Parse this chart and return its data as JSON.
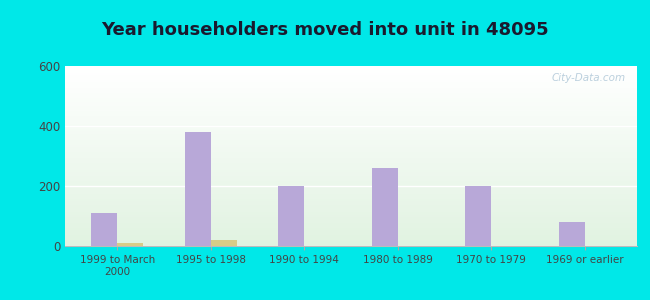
{
  "title": "Year householders moved into unit in 48095",
  "categories": [
    "1999 to March\n2000",
    "1995 to 1998",
    "1990 to 1994",
    "1980 to 1989",
    "1970 to 1979",
    "1969 or earlier"
  ],
  "white_values": [
    110,
    380,
    200,
    260,
    200,
    80
  ],
  "hispanic_values": [
    10,
    20,
    0,
    0,
    0,
    0
  ],
  "white_color": "#b8a8d8",
  "hispanic_color": "#d8cc88",
  "ylim": [
    0,
    600
  ],
  "yticks": [
    0,
    200,
    400,
    600
  ],
  "background_outer": "#00e8e8",
  "bar_width": 0.28,
  "title_fontsize": 13,
  "watermark": "City-Data.com"
}
